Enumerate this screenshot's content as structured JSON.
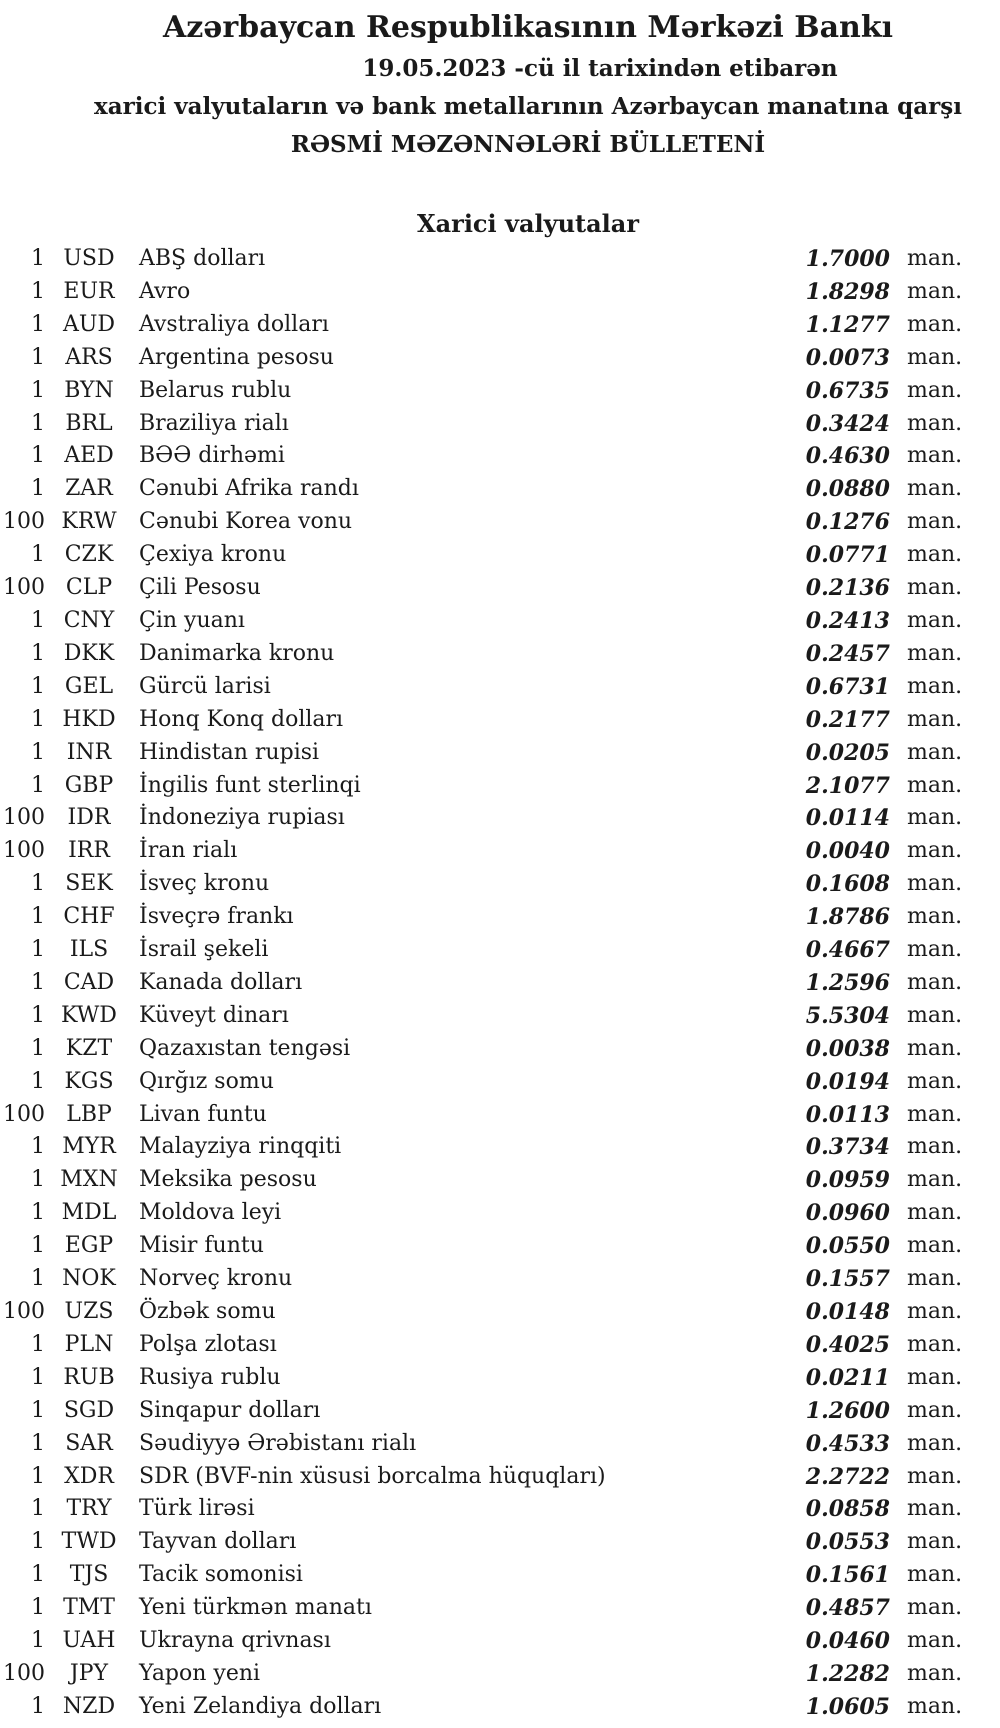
{
  "header": {
    "title": "Azərbaycan Respublikasının Mərkəzi Bankı",
    "date_line": "19.05.2023 -cü il tarixindən etibarən",
    "subtitle": "xarici valyutaların və bank metallarının Azərbaycan manatına qarşı",
    "bulletin_title": "RƏSMİ MƏZƏNNƏLƏRİ BÜLLETENİ"
  },
  "section": {
    "title": "Xarici valyutalar"
  },
  "colors": {
    "text": "#1a1a1a",
    "background": "#ffffff"
  },
  "table": {
    "unit_label": "man.",
    "rows": [
      {
        "qty": "1",
        "code": "USD",
        "name": "ABŞ dolları",
        "rate": "1.7000"
      },
      {
        "qty": "1",
        "code": "EUR",
        "name": "Avro",
        "rate": "1.8298"
      },
      {
        "qty": "1",
        "code": "AUD",
        "name": "Avstraliya dolları",
        "rate": "1.1277"
      },
      {
        "qty": "1",
        "code": "ARS",
        "name": "Argentina pesosu",
        "rate": "0.0073"
      },
      {
        "qty": "1",
        "code": "BYN",
        "name": "Belarus rublu",
        "rate": "0.6735"
      },
      {
        "qty": "1",
        "code": "BRL",
        "name": "Braziliya rialı",
        "rate": "0.3424"
      },
      {
        "qty": "1",
        "code": "AED",
        "name": "BƏƏ dirhəmi",
        "rate": "0.4630"
      },
      {
        "qty": "1",
        "code": "ZAR",
        "name": "Cənubi Afrika randı",
        "rate": "0.0880"
      },
      {
        "qty": "100",
        "code": "KRW",
        "name": "Cənubi Korea vonu",
        "rate": "0.1276"
      },
      {
        "qty": "1",
        "code": "CZK",
        "name": "Çexiya kronu",
        "rate": "0.0771"
      },
      {
        "qty": "100",
        "code": "CLP",
        "name": "Çili Pesosu",
        "rate": "0.2136"
      },
      {
        "qty": "1",
        "code": "CNY",
        "name": "Çin yuanı",
        "rate": "0.2413"
      },
      {
        "qty": "1",
        "code": "DKK",
        "name": "Danimarka kronu",
        "rate": "0.2457"
      },
      {
        "qty": "1",
        "code": "GEL",
        "name": "Gürcü larisi",
        "rate": "0.6731"
      },
      {
        "qty": "1",
        "code": "HKD",
        "name": "Honq Konq dolları",
        "rate": "0.2177"
      },
      {
        "qty": "1",
        "code": "INR",
        "name": "Hindistan rupisi",
        "rate": "0.0205"
      },
      {
        "qty": "1",
        "code": "GBP",
        "name": "İngilis funt sterlinqi",
        "rate": "2.1077"
      },
      {
        "qty": "100",
        "code": "IDR",
        "name": "İndoneziya rupiası",
        "rate": "0.0114"
      },
      {
        "qty": "100",
        "code": "IRR",
        "name": "İran rialı",
        "rate": "0.0040"
      },
      {
        "qty": "1",
        "code": "SEK",
        "name": "İsveç kronu",
        "rate": "0.1608"
      },
      {
        "qty": "1",
        "code": "CHF",
        "name": "İsveçrə frankı",
        "rate": "1.8786"
      },
      {
        "qty": "1",
        "code": "ILS",
        "name": "İsrail şekeli",
        "rate": "0.4667"
      },
      {
        "qty": "1",
        "code": "CAD",
        "name": "Kanada dolları",
        "rate": "1.2596"
      },
      {
        "qty": "1",
        "code": "KWD",
        "name": "Küveyt dinarı",
        "rate": "5.5304"
      },
      {
        "qty": "1",
        "code": "KZT",
        "name": "Qazaxıstan tengəsi",
        "rate": "0.0038"
      },
      {
        "qty": "1",
        "code": "KGS",
        "name": "Qırğız somu",
        "rate": "0.0194"
      },
      {
        "qty": "100",
        "code": "LBP",
        "name": "Livan funtu",
        "rate": "0.0113"
      },
      {
        "qty": "1",
        "code": "MYR",
        "name": "Malayziya rinqqiti",
        "rate": "0.3734"
      },
      {
        "qty": "1",
        "code": "MXN",
        "name": "Meksika pesosu",
        "rate": "0.0959"
      },
      {
        "qty": "1",
        "code": "MDL",
        "name": "Moldova leyi",
        "rate": "0.0960"
      },
      {
        "qty": "1",
        "code": "EGP",
        "name": "Misir funtu",
        "rate": "0.0550"
      },
      {
        "qty": "1",
        "code": "NOK",
        "name": "Norveç kronu",
        "rate": "0.1557"
      },
      {
        "qty": "100",
        "code": "UZS",
        "name": "Özbək somu",
        "rate": "0.0148"
      },
      {
        "qty": "1",
        "code": "PLN",
        "name": "Polşa zlotası",
        "rate": "0.4025"
      },
      {
        "qty": "1",
        "code": "RUB",
        "name": "Rusiya rublu",
        "rate": "0.0211"
      },
      {
        "qty": "1",
        "code": "SGD",
        "name": "Sinqapur dolları",
        "rate": "1.2600"
      },
      {
        "qty": "1",
        "code": "SAR",
        "name": "Səudiyyə Ərəbistanı rialı",
        "rate": "0.4533"
      },
      {
        "qty": "1",
        "code": "XDR",
        "name": "SDR (BVF-nin xüsusi borcalma hüquqları)",
        "rate": "2.2722"
      },
      {
        "qty": "1",
        "code": "TRY",
        "name": "Türk lirəsi",
        "rate": "0.0858"
      },
      {
        "qty": "1",
        "code": "TWD",
        "name": "Tayvan dolları",
        "rate": "0.0553"
      },
      {
        "qty": "1",
        "code": "TJS",
        "name": "Tacik somonisi",
        "rate": "0.1561"
      },
      {
        "qty": "1",
        "code": "TMT",
        "name": "Yeni türkmən manatı",
        "rate": "0.4857"
      },
      {
        "qty": "1",
        "code": "UAH",
        "name": "Ukrayna qrivnası",
        "rate": "0.0460"
      },
      {
        "qty": "100",
        "code": "JPY",
        "name": "Yapon yeni",
        "rate": "1.2282"
      },
      {
        "qty": "1",
        "code": "NZD",
        "name": "Yeni Zelandiya dolları",
        "rate": "1.0605"
      }
    ]
  }
}
